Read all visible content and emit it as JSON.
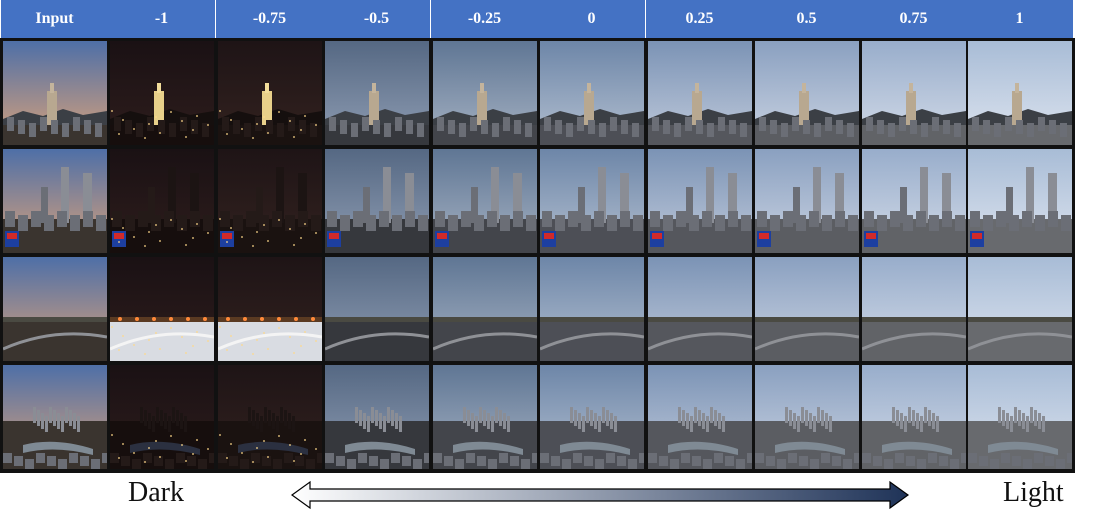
{
  "header": {
    "columns": [
      "Input",
      "-1",
      "-0.75",
      "-0.5",
      "-0.25",
      "0",
      "0.25",
      "0.5",
      "0.75",
      "1"
    ]
  },
  "rows": [
    {
      "scene": "city-tower-dusk"
    },
    {
      "scene": "city-skyline-fox5"
    },
    {
      "scene": "road-overpass"
    },
    {
      "scene": "river-city-panorama"
    }
  ],
  "columns_style": [
    {
      "sky": [
        "#4e6fa7",
        "#d9a27a"
      ],
      "ground": "#3a342f",
      "lights": false,
      "night": false
    },
    {
      "sky": [
        "#1a1114",
        "#2e1d1c"
      ],
      "ground": "#160e0d",
      "lights": true,
      "night": true
    },
    {
      "sky": [
        "#1e1416",
        "#33221f"
      ],
      "ground": "#1a1210",
      "lights": true,
      "night": true
    },
    {
      "sky": [
        "#556883",
        "#8f9db3"
      ],
      "ground": "#36383d",
      "lights": false,
      "night": false
    },
    {
      "sky": [
        "#5f7694",
        "#a6b2c3"
      ],
      "ground": "#43454b",
      "lights": false,
      "night": false
    },
    {
      "sky": [
        "#6d86a8",
        "#b3bfd0"
      ],
      "ground": "#4d4f56",
      "lights": false,
      "night": false
    },
    {
      "sky": [
        "#7b93b5",
        "#c0cadb"
      ],
      "ground": "#55575d",
      "lights": false,
      "night": false
    },
    {
      "sky": [
        "#8aa0c0",
        "#cad3e2"
      ],
      "ground": "#5b5d62",
      "lights": false,
      "night": false
    },
    {
      "sky": [
        "#98adcb",
        "#d3dbe8"
      ],
      "ground": "#616367",
      "lights": false,
      "night": false
    },
    {
      "sky": [
        "#a8bcd6",
        "#dde4ef"
      ],
      "ground": "#686a6e",
      "lights": false,
      "night": false
    }
  ],
  "legend": {
    "left_label": "Dark",
    "right_label": "Light",
    "arrow_colors": [
      "#ffffff",
      "#1f3358"
    ]
  }
}
